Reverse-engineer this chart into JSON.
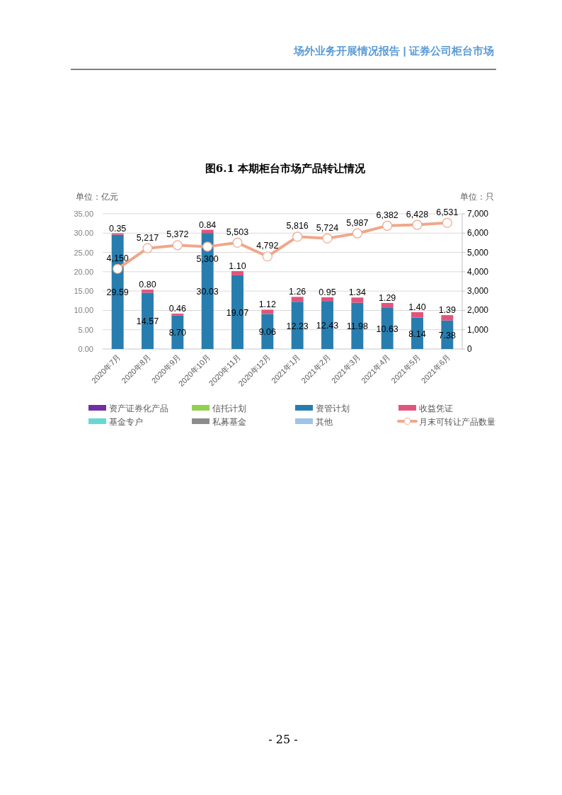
{
  "chart_data": {
    "type": "bar",
    "stacked": true,
    "title": "图6.1 本期柜台市场产品转让情况",
    "ylabel": "单位：亿元",
    "y2label": "单位：只",
    "categories": [
      "2020年7月",
      "2020年8月",
      "2020年9月",
      "2020年10月",
      "2020年11月",
      "2020年12月",
      "2021年1月",
      "2021年2月",
      "2021年3月",
      "2021年4月",
      "2021年5月",
      "2021年6月"
    ],
    "series": [
      {
        "name": "资产证券化产品",
        "color": "#7030a0",
        "values": [
          null,
          null,
          null,
          null,
          null,
          null,
          null,
          null,
          null,
          null,
          null,
          null
        ]
      },
      {
        "name": "信托计划",
        "color": "#92d050",
        "values": [
          null,
          null,
          null,
          null,
          null,
          null,
          null,
          null,
          null,
          null,
          null,
          null
        ]
      },
      {
        "name": "资管计划",
        "color": "#287daf",
        "values": [
          29.59,
          14.57,
          8.7,
          30.03,
          19.07,
          9.06,
          12.23,
          12.43,
          11.98,
          10.63,
          8.14,
          7.38
        ],
        "value_labels": [
          "29.59",
          "14.57",
          "8.70",
          "30.03",
          "19.07",
          "9.06",
          "12.23",
          "12.43",
          "11.98",
          "10.63",
          "8.14",
          "7.38"
        ]
      },
      {
        "name": "收益凭证",
        "color": "#e1557d",
        "values": [
          0.35,
          0.8,
          0.46,
          0.84,
          1.1,
          1.12,
          1.26,
          0.95,
          1.34,
          1.29,
          1.4,
          1.39
        ],
        "value_labels": [
          "0.35",
          "0.80",
          "0.46",
          "0.84",
          "1.10",
          "1.12",
          "1.26",
          "0.95",
          "1.34",
          "1.29",
          "1.40",
          "1.39"
        ]
      },
      {
        "name": "基金专户",
        "color": "#66d9cf",
        "values": [
          null,
          null,
          null,
          null,
          null,
          null,
          null,
          null,
          null,
          null,
          null,
          null
        ]
      },
      {
        "name": "私募基金",
        "color": "#8c8c8c",
        "values": [
          null,
          null,
          null,
          null,
          null,
          null,
          null,
          null,
          null,
          null,
          null,
          null
        ]
      },
      {
        "name": "其他",
        "color": "#9dc3e6",
        "values": [
          null,
          null,
          null,
          null,
          null,
          null,
          null,
          null,
          null,
          null,
          null,
          null
        ]
      },
      {
        "name": "月末可转让产品数量",
        "type": "line",
        "axis": "y2",
        "color": "#eea88a",
        "values": [
          4150,
          5217,
          5372,
          5300,
          5503,
          4792,
          5816,
          5724,
          5987,
          6382,
          6428,
          6531
        ],
        "value_labels": [
          "4,150",
          "5,217",
          "5,372",
          "5,300",
          "5,503",
          "4,792",
          "5,816",
          "5,724",
          "5,987",
          "6,382",
          "6,428",
          "6,531"
        ]
      }
    ],
    "ylim": [
      0,
      35
    ],
    "yticks": [
      {
        "value": 0,
        "label": "0.00"
      },
      {
        "value": 5,
        "label": "5.00"
      },
      {
        "value": 10,
        "label": "10.00"
      },
      {
        "value": 15,
        "label": "15.00"
      },
      {
        "value": 20,
        "label": "20.00"
      },
      {
        "value": 25,
        "label": "25.00"
      },
      {
        "value": 30,
        "label": "30.00"
      },
      {
        "value": 35,
        "label": "35.00"
      }
    ],
    "y2lim": [
      0,
      7000
    ],
    "y2ticks": [
      0,
      {
        "value": 1000,
        "label": "1,000"
      },
      {
        "value": 2000,
        "label": "2,000"
      },
      {
        "value": 3000,
        "label": "3,000"
      },
      {
        "value": 4000,
        "label": "4,000"
      },
      {
        "value": 5000,
        "label": "5,000"
      },
      {
        "value": 6000,
        "label": "6,000"
      },
      {
        "value": 7000,
        "label": "7,000"
      }
    ],
    "grid": "y",
    "legend": "bottom",
    "marker": "circle",
    "annotations": [
      "场外业务开展情况报告 | 证券公司柜台市场",
      "- 25 -"
    ]
  }
}
